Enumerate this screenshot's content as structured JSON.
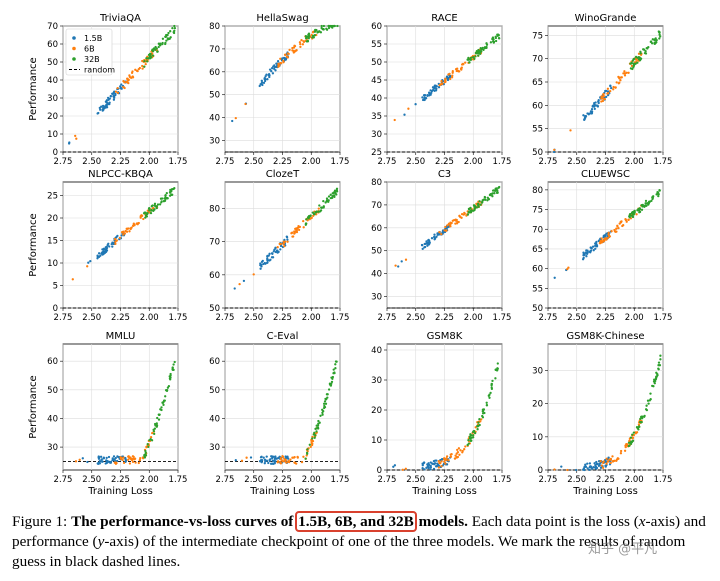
{
  "figure": {
    "colors": {
      "small": "#1f77b4",
      "medium": "#ff7f0e",
      "large": "#2ca02c",
      "random": "#000000"
    },
    "legend": [
      "1.5B",
      "6B",
      "32B",
      "random"
    ],
    "xlabel": "Training Loss",
    "ylabel": "Performance",
    "xticks": [
      "2.75",
      "2.50",
      "2.25",
      "2.00",
      "1.75"
    ]
  },
  "chart_data": [
    {
      "type": "scatter",
      "title": "TriviaQA",
      "xlabel": "",
      "ylabel": "Performance",
      "xlim": [
        2.75,
        1.75
      ],
      "ylim": [
        0,
        70
      ],
      "yticks": [
        0,
        10,
        20,
        30,
        40,
        50,
        60,
        70
      ],
      "random": 0,
      "curve": "linear",
      "y_start": 4,
      "y_end": 70,
      "legend": [
        "1.5B",
        "6B",
        "32B",
        "random"
      ]
    },
    {
      "type": "scatter",
      "title": "HellaSwag",
      "xlabel": "",
      "ylabel": "",
      "xlim": [
        2.75,
        1.75
      ],
      "ylim": [
        25,
        80
      ],
      "yticks": [
        30,
        40,
        50,
        60,
        70,
        80
      ],
      "random": 25,
      "curve": "concave",
      "y_start": 37,
      "y_end": 81
    },
    {
      "type": "scatter",
      "title": "RACE",
      "xlabel": "",
      "ylabel": "",
      "xlim": [
        2.75,
        1.75
      ],
      "ylim": [
        25,
        60
      ],
      "yticks": [
        25,
        30,
        35,
        40,
        45,
        50,
        55,
        60
      ],
      "random": 25,
      "curve": "linear",
      "y_start": 33,
      "y_end": 58
    },
    {
      "type": "scatter",
      "title": "WinoGrande",
      "xlabel": "",
      "ylabel": "",
      "xlim": [
        2.75,
        1.75
      ],
      "ylim": [
        50,
        77
      ],
      "yticks": [
        50,
        55,
        60,
        65,
        70,
        75
      ],
      "random": 50,
      "curve": "linear",
      "y_start": 50,
      "y_end": 76
    },
    {
      "type": "scatter",
      "title": "NLPCC-KBQA",
      "xlabel": "",
      "ylabel": "Performance",
      "xlim": [
        2.75,
        1.75
      ],
      "ylim": [
        0,
        28
      ],
      "yticks": [
        0,
        5,
        10,
        15,
        20,
        25
      ],
      "random": 0,
      "curve": "linear",
      "y_start": 6,
      "y_end": 27
    },
    {
      "type": "scatter",
      "title": "ClozeT",
      "xlabel": "",
      "ylabel": "",
      "xlim": [
        2.75,
        1.75
      ],
      "ylim": [
        50,
        88
      ],
      "yticks": [
        50,
        60,
        70,
        80
      ],
      "random": 50,
      "curve": "linear",
      "y_start": 54,
      "y_end": 86
    },
    {
      "type": "scatter",
      "title": "C3",
      "xlabel": "",
      "ylabel": "",
      "xlim": [
        2.75,
        1.75
      ],
      "ylim": [
        25,
        80
      ],
      "yticks": [
        30,
        40,
        50,
        60,
        70,
        80
      ],
      "random": 25,
      "curve": "linear",
      "y_start": 42,
      "y_end": 78
    },
    {
      "type": "scatter",
      "title": "CLUEWSC",
      "xlabel": "",
      "ylabel": "",
      "xlim": [
        2.75,
        1.75
      ],
      "ylim": [
        50,
        82
      ],
      "yticks": [
        50,
        55,
        60,
        65,
        70,
        75,
        80
      ],
      "random": 50,
      "curve": "linear",
      "y_start": 57,
      "y_end": 80
    },
    {
      "type": "scatter",
      "title": "MMLU",
      "xlabel": "Training Loss",
      "ylabel": "Performance",
      "xlim": [
        2.75,
        1.75
      ],
      "ylim": [
        22,
        66
      ],
      "yticks": [
        30,
        40,
        50,
        60
      ],
      "random": 25,
      "curve": "emergent",
      "y_start": 25,
      "y_end": 64
    },
    {
      "type": "scatter",
      "title": "C-Eval",
      "xlabel": "Training Loss",
      "ylabel": "",
      "xlim": [
        2.75,
        1.75
      ],
      "ylim": [
        22,
        66
      ],
      "yticks": [
        30,
        40,
        50,
        60
      ],
      "random": 25,
      "curve": "emergent",
      "y_start": 25,
      "y_end": 64
    },
    {
      "type": "scatter",
      "title": "GSM8K",
      "xlabel": "Training Loss",
      "ylabel": "",
      "xlim": [
        2.75,
        1.75
      ],
      "ylim": [
        0,
        42
      ],
      "yticks": [
        0,
        10,
        20,
        30,
        40
      ],
      "random": 0,
      "curve": "exp",
      "y_start": 1,
      "y_end": 41
    },
    {
      "type": "scatter",
      "title": "GSM8K-Chinese",
      "xlabel": "Training Loss",
      "ylabel": "",
      "xlim": [
        2.75,
        1.75
      ],
      "ylim": [
        0,
        38
      ],
      "yticks": [
        0,
        10,
        20,
        30
      ],
      "random": 0,
      "curve": "exp",
      "y_start": 0.5,
      "y_end": 37
    }
  ],
  "caption": {
    "prefix": "Figure 1: ",
    "bold_before": "The performance-vs-loss curves of ",
    "bold_highlight": "1.5B, 6B, and 32B",
    "bold_after": " models.",
    "text_1": " Each data point is the loss (",
    "x_var": "x",
    "text_2": "-axis) and performance (",
    "y_var": "y",
    "text_3": "-axis) of the intermediate checkpoint of one of the three models. We mark the results of random guess in black dashed lines."
  },
  "watermark": "知乎 @平凡"
}
